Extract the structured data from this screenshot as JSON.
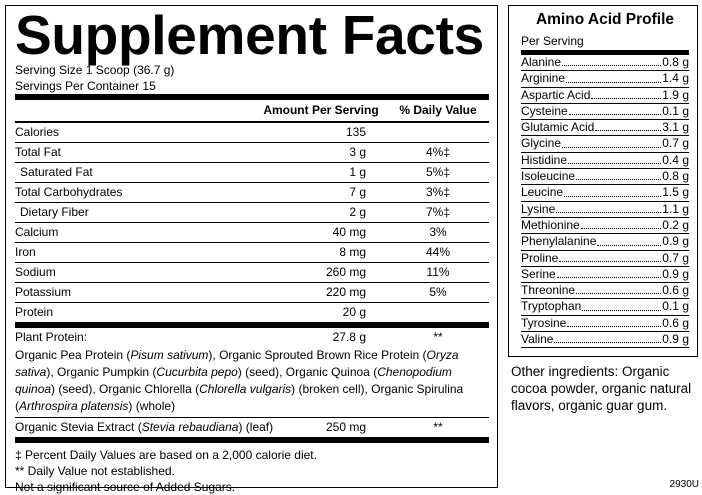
{
  "facts": {
    "title": "Supplement Facts",
    "serving_size": "Serving Size 1 Scoop (36.7 g)",
    "servings_per_container": "Servings Per Container 15",
    "header": [
      "Amount Per Serving",
      "% Daily Value"
    ],
    "rows": [
      {
        "label": "Calories",
        "amount": "135"
      },
      {
        "label": "Total Fat",
        "amount": "3 g",
        "dv": "4%‡"
      },
      {
        "label": "Saturated Fat",
        "amount": "1 g",
        "dv": "5%‡"
      },
      {
        "label": "Total Carbohydrates",
        "amount": "7 g",
        "dv": "3%‡"
      },
      {
        "label": "Dietary Fiber",
        "amount": "2 g",
        "dv": "7%‡"
      },
      {
        "label": "Calcium",
        "amount": "40 mg",
        "dv": "3%"
      },
      {
        "label": "Iron",
        "amount": "8 mg",
        "dv": "44%"
      },
      {
        "label": "Sodium",
        "amount": "260 mg",
        "dv": "11%"
      },
      {
        "label": "Potassium",
        "amount": "220 mg",
        "dv": "5%"
      },
      {
        "label": "Protein",
        "amount": "20 g"
      }
    ],
    "plant_protein": {
      "label": "Plant Protein:",
      "amount": "27.8 g",
      "dv": "**",
      "description": [
        "Organic Pea Protein (",
        "Pisum sativum",
        "), Organic Sprouted Brown Rice Protein (",
        "Oryza sativa",
        "), Organic Pumpkin (",
        "Cucurbita pepo",
        ") (seed), Organic Quinoa (",
        "Chenopodium quinoa",
        ") (seed), Organic Chlorella (",
        "Chlorella vulgaris",
        ") (broken cell), Organic Spirulina (",
        "Arthrospira platensis",
        ") (whole)"
      ]
    },
    "stevia": {
      "label": [
        "Organic Stevia Extract (",
        "Stevia rebaudiana",
        ") (leaf)"
      ],
      "amount": "250 mg",
      "dv": "**"
    },
    "footnotes": [
      "‡  Percent Daily Values are based on a 2,000 calorie diet.",
      "** Daily Value not established.",
      "Not a significant source of Added Sugars."
    ]
  },
  "amino": {
    "title": "Amino Acid Profile",
    "subtitle": "Per Serving",
    "rows": [
      [
        "Alanine",
        "0.8 g"
      ],
      [
        "Arginine",
        "1.4 g"
      ],
      [
        "Aspartic Acid",
        "1.9 g"
      ],
      [
        "Cysteine",
        "0.1 g"
      ],
      [
        "Glutamic Acid",
        "3.1 g"
      ],
      [
        "Glycine",
        "0.7 g"
      ],
      [
        "Histidine",
        "0.4 g"
      ],
      [
        "Isoleucine",
        "0.8 g"
      ],
      [
        "Leucine",
        "1.5 g"
      ],
      [
        "Lysine",
        "1.1 g"
      ],
      [
        "Methionine",
        "0.2 g"
      ],
      [
        "Phenylalanine",
        "0.9 g"
      ],
      [
        "Proline",
        "0.7 g"
      ],
      [
        "Serine",
        "0.9 g"
      ],
      [
        "Threonine",
        "0.6 g"
      ],
      [
        "Tryptophan",
        "0.1 g"
      ],
      [
        "Tyrosine",
        "0.6 g"
      ],
      [
        "Valine",
        "0.9 g"
      ]
    ]
  },
  "other_ingredients": "Other ingredients: Organic cocoa powder, organic natural flavors, organic guar gum.",
  "code": "2930U"
}
